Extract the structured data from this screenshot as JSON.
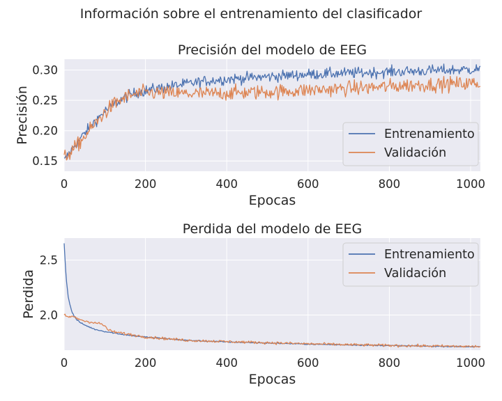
{
  "figure": {
    "suptitle": "Información sobre el entrenamiento del clasificador",
    "background": "#ffffff",
    "axes_facecolor": "#eaeaf2",
    "grid_color": "#ffffff",
    "series_colors": {
      "train": "#4c72b0",
      "val": "#dd8452"
    }
  },
  "chart_data": [
    {
      "type": "line",
      "title": "Precisión del modelo de EEG",
      "xlabel": "Epocas",
      "ylabel": "Precisión",
      "xlim": [
        0,
        1024
      ],
      "ylim": [
        0.133,
        0.318
      ],
      "xticks": [
        0,
        200,
        400,
        600,
        800,
        1000
      ],
      "yticks": [
        0.15,
        0.2,
        0.25,
        0.3
      ],
      "ytick_labels": [
        "0.15",
        "0.20",
        "0.25",
        "0.30"
      ],
      "xtick_labels": [
        "0",
        "200",
        "400",
        "600",
        "800",
        "1000"
      ],
      "grid": true,
      "legend_position": "lower-right",
      "series": [
        {
          "name": "Entrenamiento",
          "color": "#4c72b0",
          "x": [
            0,
            25,
            50,
            75,
            100,
            125,
            150,
            175,
            200,
            250,
            300,
            350,
            400,
            450,
            500,
            550,
            600,
            650,
            700,
            750,
            800,
            850,
            900,
            950,
            1000,
            1024
          ],
          "values": [
            0.15,
            0.175,
            0.195,
            0.215,
            0.232,
            0.245,
            0.255,
            0.262,
            0.266,
            0.272,
            0.277,
            0.282,
            0.285,
            0.287,
            0.289,
            0.291,
            0.293,
            0.294,
            0.295,
            0.296,
            0.297,
            0.298,
            0.299,
            0.3,
            0.301,
            0.302
          ],
          "noise": 0.0045
        },
        {
          "name": "Validación",
          "color": "#dd8452",
          "x": [
            0,
            25,
            50,
            75,
            100,
            125,
            150,
            175,
            200,
            250,
            300,
            350,
            400,
            450,
            500,
            550,
            600,
            650,
            700,
            750,
            800,
            850,
            900,
            950,
            1000,
            1024
          ],
          "values": [
            0.155,
            0.17,
            0.19,
            0.21,
            0.23,
            0.245,
            0.255,
            0.26,
            0.263,
            0.262,
            0.261,
            0.261,
            0.262,
            0.263,
            0.264,
            0.265,
            0.267,
            0.268,
            0.27,
            0.271,
            0.273,
            0.275,
            0.276,
            0.277,
            0.278,
            0.278
          ],
          "noise": 0.006
        }
      ]
    },
    {
      "type": "line",
      "title": "Perdida del modelo de EEG",
      "xlabel": "Epocas",
      "ylabel": "Perdida",
      "xlim": [
        0,
        1024
      ],
      "ylim": [
        1.68,
        2.7
      ],
      "xticks": [
        0,
        200,
        400,
        600,
        800,
        1000
      ],
      "yticks": [
        2.0,
        2.5
      ],
      "ytick_labels": [
        "2.0",
        "2.5"
      ],
      "xtick_labels": [
        "0",
        "200",
        "400",
        "600",
        "800",
        "1000"
      ],
      "grid": true,
      "legend_position": "top-right",
      "series": [
        {
          "name": "Entrenamiento",
          "color": "#4c72b0",
          "x": [
            0,
            3,
            6,
            10,
            15,
            20,
            30,
            40,
            50,
            75,
            100,
            150,
            200,
            300,
            400,
            500,
            600,
            700,
            800,
            900,
            1000,
            1024
          ],
          "values": [
            2.65,
            2.45,
            2.3,
            2.17,
            2.08,
            2.02,
            1.96,
            1.93,
            1.91,
            1.87,
            1.85,
            1.82,
            1.8,
            1.77,
            1.755,
            1.745,
            1.735,
            1.728,
            1.722,
            1.716,
            1.712,
            1.711
          ],
          "noise": 0.0025
        },
        {
          "name": "Validación",
          "color": "#dd8452",
          "x": [
            0,
            10,
            20,
            30,
            40,
            50,
            60,
            75,
            90,
            100,
            110,
            125,
            150,
            200,
            300,
            400,
            500,
            600,
            700,
            800,
            900,
            1000,
            1024
          ],
          "values": [
            2.0,
            1.98,
            1.99,
            1.97,
            1.96,
            1.945,
            1.94,
            1.93,
            1.92,
            1.9,
            1.86,
            1.845,
            1.83,
            1.8,
            1.77,
            1.758,
            1.748,
            1.738,
            1.73,
            1.723,
            1.718,
            1.714,
            1.713
          ],
          "noise": 0.006
        }
      ]
    }
  ]
}
